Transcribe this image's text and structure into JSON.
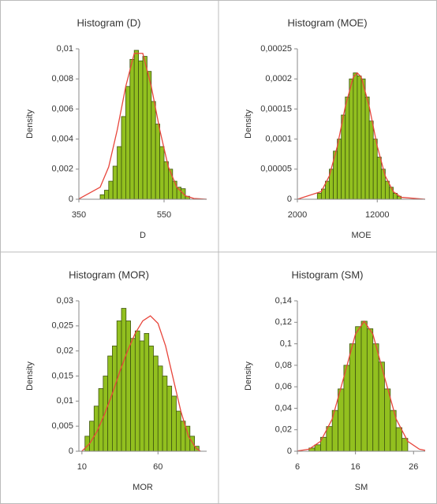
{
  "chart_data": [
    {
      "type": "histogram",
      "title": "Histogram (D)",
      "x_label": "D",
      "y_label": "Density",
      "bins": [
        400,
        410,
        420,
        430,
        440,
        450,
        460,
        470,
        480,
        490,
        500,
        510,
        520,
        530,
        540,
        550,
        560,
        570,
        580,
        590,
        600,
        610
      ],
      "values": [
        0.0003,
        0.0006,
        0.0012,
        0.0022,
        0.0035,
        0.0055,
        0.0075,
        0.0093,
        0.0099,
        0.0092,
        0.0095,
        0.0085,
        0.0065,
        0.005,
        0.0035,
        0.0025,
        0.002,
        0.0012,
        0.0008,
        0.0007,
        0.0002
      ],
      "color": "#92c01f",
      "edge_color": "#3f5410",
      "curve_x": [
        350,
        400,
        420,
        440,
        460,
        480,
        500,
        520,
        540,
        560,
        580,
        600,
        620,
        650
      ],
      "curve_y": [
        2e-05,
        0.0008,
        0.00215,
        0.0046,
        0.0075,
        0.0097,
        0.0097,
        0.0075,
        0.0046,
        0.00215,
        0.0008,
        0.00023,
        5e-05,
        0
      ],
      "curve_color": "#e8463c",
      "xlim": [
        350,
        650
      ],
      "xticks": [
        350,
        550
      ],
      "ylim": [
        0,
        0.01
      ],
      "yticks": [
        0,
        {
          "value": 0.002,
          "label": "0,002"
        },
        {
          "value": 0.004,
          "label": "0,004"
        },
        {
          "value": 0.006,
          "label": "0,006"
        },
        {
          "value": 0.008,
          "label": "0,008"
        },
        {
          "value": 0.01,
          "label": "0,01"
        }
      ]
    },
    {
      "type": "histogram",
      "title": "Histogram (MOE)",
      "x_label": "MOE",
      "y_label": "Density",
      "bins": [
        4500,
        5000,
        5500,
        6000,
        6500,
        7000,
        7500,
        8000,
        8500,
        9000,
        9500,
        10000,
        10500,
        11000,
        11500,
        12000,
        12500,
        13000,
        13500,
        14000,
        14500,
        15000
      ],
      "values": [
        1e-05,
        1.7e-05,
        3e-05,
        5e-05,
        8e-05,
        0.0001,
        0.00014,
        0.00017,
        0.0002,
        0.00021,
        0.000205,
        0.0002,
        0.00017,
        0.00013,
        0.0001,
        7e-05,
        5e-05,
        3e-05,
        2e-05,
        1e-05,
        5e-06
      ],
      "color": "#92c01f",
      "edge_color": "#3f5410",
      "curve_x": [
        2000,
        5000,
        6000,
        7000,
        8000,
        9000,
        9500,
        10000,
        11000,
        12000,
        13000,
        14000,
        15000,
        18000
      ],
      "curve_y": [
        0,
        1.28e-05,
        3.87e-05,
        8.8e-05,
        0.000154,
        0.000203,
        0.00021,
        0.000203,
        0.000154,
        8.8e-05,
        3.87e-05,
        1.28e-05,
        3.2e-06,
        0
      ],
      "curve_color": "#e8463c",
      "xlim": [
        2000,
        18000
      ],
      "xticks": [
        2000,
        12000
      ],
      "ylim": [
        0,
        0.00025
      ],
      "yticks": [
        0,
        {
          "value": 5e-05,
          "label": "0,00005"
        },
        {
          "value": 0.0001,
          "label": "0,0001"
        },
        {
          "value": 0.00015,
          "label": "0,00015"
        },
        {
          "value": 0.0002,
          "label": "0,0002"
        },
        {
          "value": 0.00025,
          "label": "0,00025"
        }
      ]
    },
    {
      "type": "histogram",
      "title": "Histogram (MOR)",
      "x_label": "MOR",
      "y_label": "Density",
      "bins": [
        12,
        15,
        18,
        21,
        24,
        27,
        30,
        33,
        36,
        39,
        42,
        45,
        48,
        51,
        54,
        57,
        60,
        63,
        66,
        69,
        72,
        75,
        78,
        81,
        84,
        87
      ],
      "values": [
        0.003,
        0.006,
        0.009,
        0.0125,
        0.015,
        0.019,
        0.021,
        0.026,
        0.0285,
        0.026,
        0.0225,
        0.024,
        0.022,
        0.0235,
        0.021,
        0.019,
        0.017,
        0.015,
        0.013,
        0.011,
        0.008,
        0.006,
        0.005,
        0.003,
        0.001
      ],
      "color": "#92c01f",
      "edge_color": "#3f5410",
      "curve_x": [
        10,
        15,
        20,
        25,
        30,
        35,
        40,
        45,
        50,
        55,
        60,
        65,
        70,
        75,
        80,
        85,
        88
      ],
      "curve_y": [
        0,
        0.0015,
        0.004,
        0.0075,
        0.0115,
        0.016,
        0.02,
        0.0235,
        0.026,
        0.027,
        0.0255,
        0.021,
        0.0145,
        0.008,
        0.003,
        0.0006,
        0
      ],
      "curve_color": "#e8463c",
      "xlim": [
        8,
        92
      ],
      "xticks": [
        10,
        60
      ],
      "ylim": [
        0,
        0.03
      ],
      "yticks": [
        0,
        {
          "value": 0.005,
          "label": "0,005"
        },
        {
          "value": 0.01,
          "label": "0,01"
        },
        {
          "value": 0.015,
          "label": "0,015"
        },
        {
          "value": 0.02,
          "label": "0,02"
        },
        {
          "value": 0.025,
          "label": "0,025"
        },
        {
          "value": 0.03,
          "label": "0,03"
        }
      ]
    },
    {
      "type": "histogram",
      "title": "Histogram (SM)",
      "x_label": "SM",
      "y_label": "Density",
      "bins": [
        8,
        9,
        10,
        11,
        12,
        13,
        14,
        15,
        16,
        17,
        18,
        19,
        20,
        21,
        22,
        23,
        24,
        25
      ],
      "values": [
        0.003,
        0.006,
        0.013,
        0.023,
        0.038,
        0.058,
        0.08,
        0.1,
        0.116,
        0.121,
        0.114,
        0.1,
        0.083,
        0.058,
        0.038,
        0.022,
        0.012
      ],
      "color": "#92c01f",
      "edge_color": "#3f5410",
      "curve_x": [
        6,
        8,
        10,
        12,
        14,
        16,
        17.5,
        19,
        21,
        23,
        25,
        27,
        28
      ],
      "curve_y": [
        0.0003,
        0.0019,
        0.0092,
        0.03,
        0.069,
        0.109,
        0.121,
        0.109,
        0.069,
        0.03,
        0.0092,
        0.0019,
        0.0008
      ],
      "curve_color": "#e8463c",
      "xlim": [
        6,
        28
      ],
      "xticks": [
        6,
        16,
        26
      ],
      "ylim": [
        0,
        0.14
      ],
      "yticks": [
        0,
        {
          "value": 0.02,
          "label": "0,02"
        },
        {
          "value": 0.04,
          "label": "0,04"
        },
        {
          "value": 0.06,
          "label": "0,06"
        },
        {
          "value": 0.08,
          "label": "0,08"
        },
        {
          "value": 0.1,
          "label": "0,1"
        },
        {
          "value": 0.12,
          "label": "0,12"
        },
        {
          "value": 0.14,
          "label": "0,14"
        }
      ]
    }
  ]
}
